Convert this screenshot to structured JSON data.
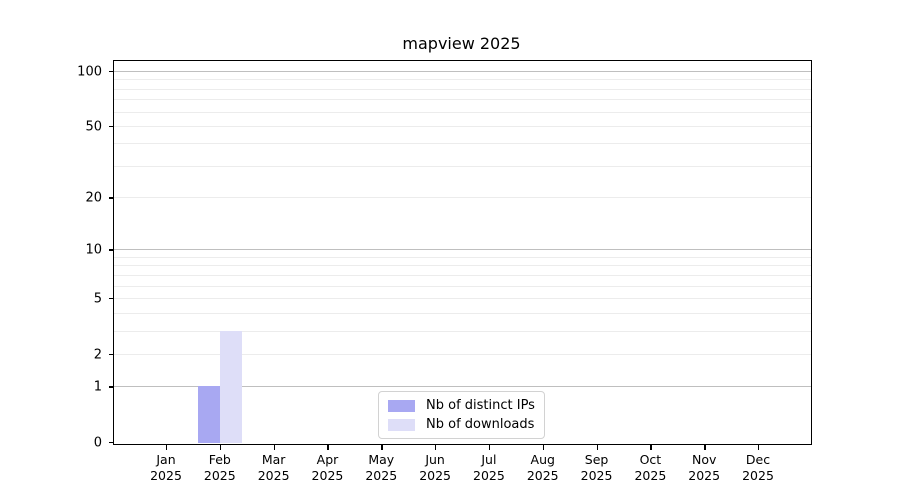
{
  "title": "mapview 2025",
  "chart_data": {
    "type": "bar",
    "title": "mapview 2025",
    "categories": [
      "Jan",
      "Feb",
      "Mar",
      "Apr",
      "May",
      "Jun",
      "Jul",
      "Aug",
      "Sep",
      "Oct",
      "Nov",
      "Dec"
    ],
    "category_year": "2025",
    "series": [
      {
        "name": "Nb of distinct IPs",
        "key": "distinct-ips",
        "color": "#a8a8f2",
        "values": [
          0,
          1,
          0,
          0,
          0,
          0,
          0,
          0,
          0,
          0,
          0,
          0
        ]
      },
      {
        "name": "Nb of downloads",
        "key": "downloads",
        "color": "#dedef8",
        "values": [
          0,
          3,
          0,
          0,
          0,
          0,
          0,
          0,
          0,
          0,
          0,
          0
        ]
      }
    ],
    "xlabel": "",
    "ylabel": "",
    "y_axis": {
      "scale": "log1p",
      "tick_values": [
        0,
        1,
        2,
        5,
        10,
        20,
        50,
        100
      ],
      "major_grid_values": [
        1,
        10,
        100
      ],
      "minor_grid_values": [
        2,
        3,
        4,
        5,
        6,
        7,
        8,
        9,
        20,
        30,
        40,
        50,
        60,
        70,
        80,
        90
      ],
      "range": [
        0,
        113
      ]
    },
    "grid": true,
    "legend": {
      "position": "lower center",
      "entries": [
        "Nb of distinct IPs",
        "Nb of downloads"
      ]
    }
  },
  "colors": {
    "background": "#ffffff",
    "spine": "#000000",
    "major_grid": "#bfbfbf",
    "minor_grid": "#ececec",
    "legend_border": "#d2d2d2",
    "bar_distinct_ips": "#a8a8f2",
    "bar_downloads": "#dedef8"
  }
}
